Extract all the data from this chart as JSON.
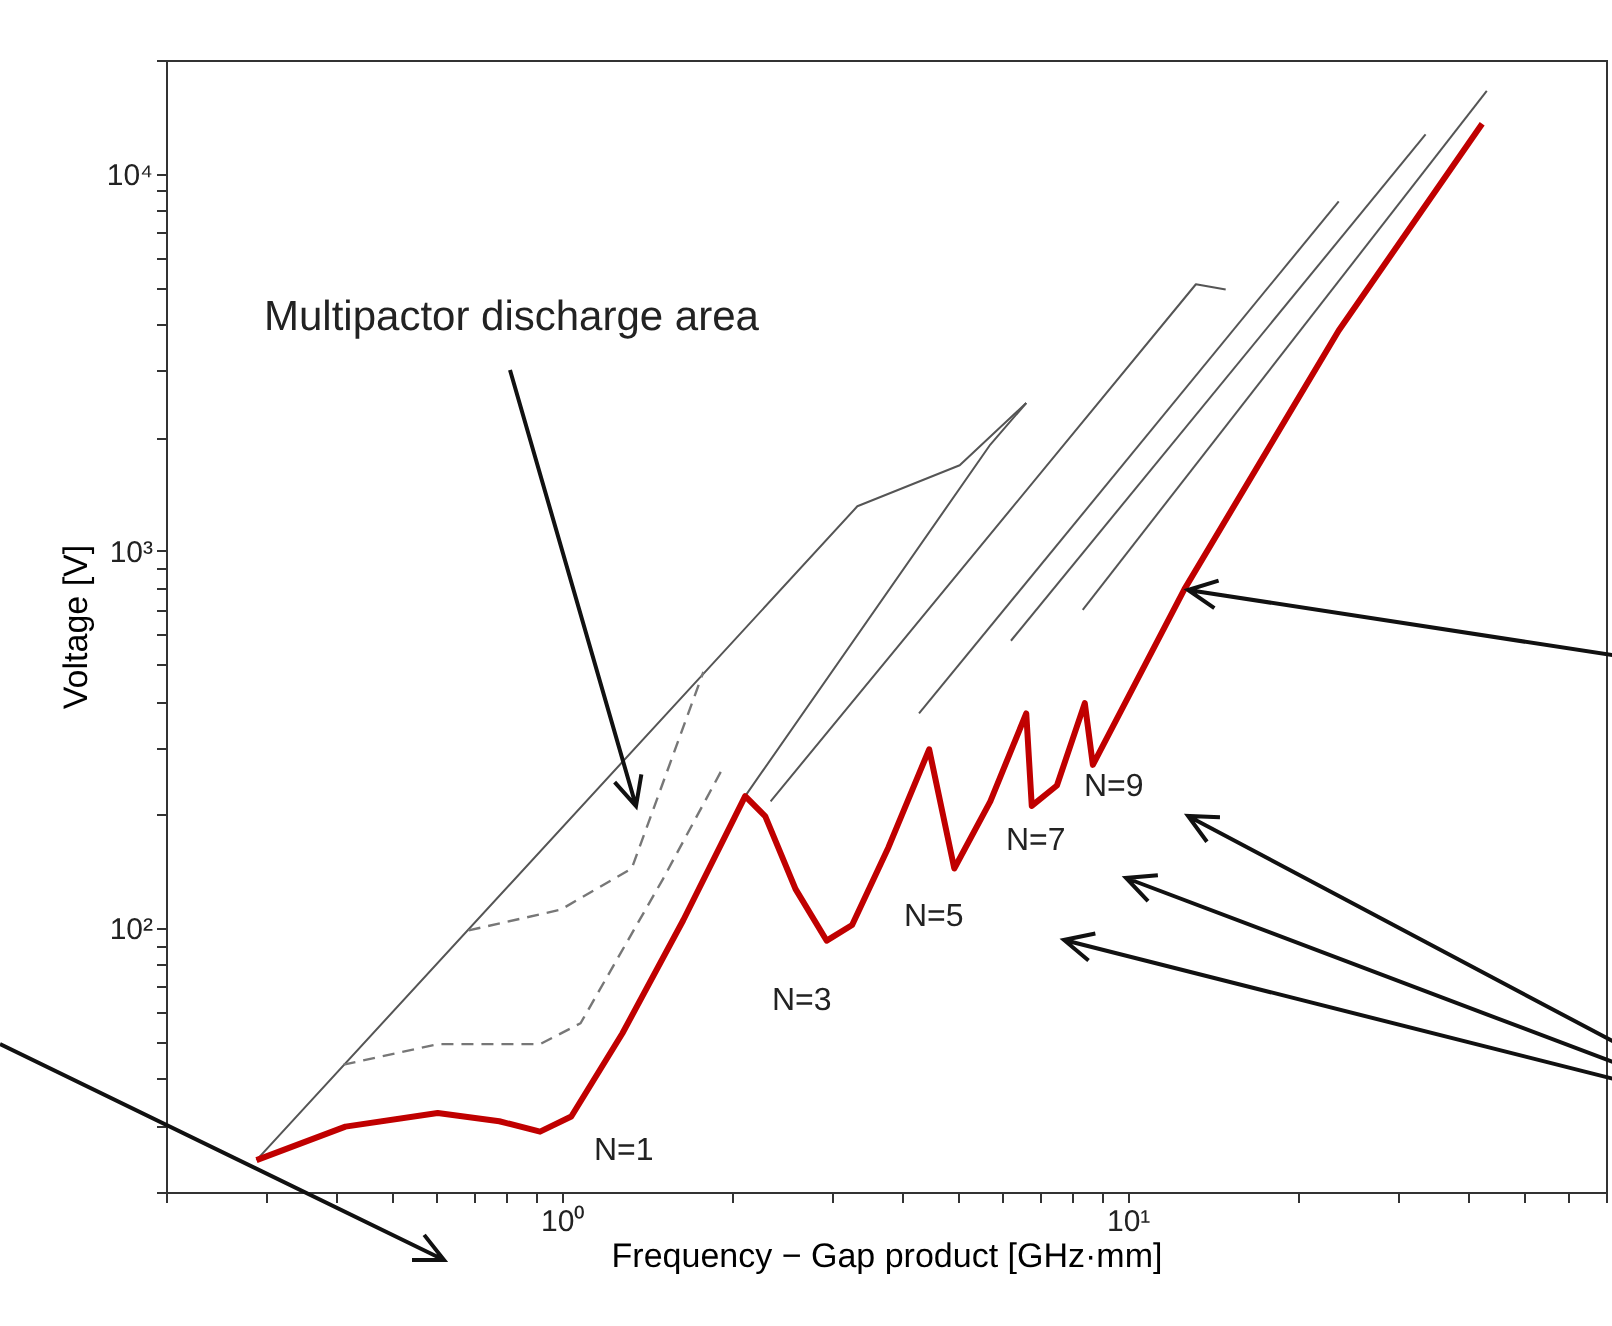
{
  "chart_data": {
    "type": "line",
    "xlabel": "Frequency − Gap product [GHz·mm]",
    "ylabel": "Voltage [V]",
    "log": "xy",
    "xlim": [
      0.2,
      70
    ],
    "ylim": [
      20,
      20000
    ],
    "xticks": [
      {
        "value": 0.2,
        "label": null
      },
      {
        "value": 0.3,
        "label": null
      },
      {
        "value": 0.4,
        "label": null
      },
      {
        "value": 0.5,
        "label": null
      },
      {
        "value": 0.6,
        "label": null
      },
      {
        "value": 0.7,
        "label": null
      },
      {
        "value": 0.8,
        "label": null
      },
      {
        "value": 0.9,
        "label": null
      },
      {
        "value": 1,
        "label": "10⁰"
      },
      {
        "value": 2,
        "label": null
      },
      {
        "value": 3,
        "label": null
      },
      {
        "value": 4,
        "label": null
      },
      {
        "value": 5,
        "label": null
      },
      {
        "value": 6,
        "label": null
      },
      {
        "value": 7,
        "label": null
      },
      {
        "value": 8,
        "label": null
      },
      {
        "value": 9,
        "label": null
      },
      {
        "value": 10,
        "label": "10¹"
      },
      {
        "value": 20,
        "label": null
      },
      {
        "value": 30,
        "label": null
      },
      {
        "value": 40,
        "label": null
      },
      {
        "value": 50,
        "label": null
      },
      {
        "value": 60,
        "label": null
      },
      {
        "value": 70,
        "label": null
      }
    ],
    "yticks": [
      {
        "value": 20,
        "label": null
      },
      {
        "value": 30,
        "label": null
      },
      {
        "value": 40,
        "label": null
      },
      {
        "value": 50,
        "label": null
      },
      {
        "value": 60,
        "label": null
      },
      {
        "value": 70,
        "label": null
      },
      {
        "value": 80,
        "label": null
      },
      {
        "value": 90,
        "label": null
      },
      {
        "value": 100,
        "label": "10²"
      },
      {
        "value": 200,
        "label": null
      },
      {
        "value": 300,
        "label": null
      },
      {
        "value": 400,
        "label": null
      },
      {
        "value": 500,
        "label": null
      },
      {
        "value": 600,
        "label": null
      },
      {
        "value": 700,
        "label": null
      },
      {
        "value": 800,
        "label": null
      },
      {
        "value": 900,
        "label": null
      },
      {
        "value": 1000,
        "label": "10³"
      },
      {
        "value": 2000,
        "label": null
      },
      {
        "value": 3000,
        "label": null
      },
      {
        "value": 4000,
        "label": null
      },
      {
        "value": 5000,
        "label": null
      },
      {
        "value": 6000,
        "label": null
      },
      {
        "value": 7000,
        "label": null
      },
      {
        "value": 8000,
        "label": null
      },
      {
        "value": 9000,
        "label": null
      },
      {
        "value": 10000,
        "label": "10⁴"
      },
      {
        "value": 20000,
        "label": null
      }
    ],
    "series": [
      {
        "color": "#555555",
        "x": [
          0.289,
          3.33,
          5.05,
          6.62
        ],
        "values": [
          24.3,
          1313,
          1687,
          2466
        ]
      },
      {
        "color": "#555555",
        "x": [
          2.11,
          5.72,
          6.62
        ],
        "values": [
          224,
          1914,
          2466
        ]
      },
      {
        "color": "#777777",
        "line_style": "dashed",
        "x": [
          0.412,
          0.604,
          0.916,
          1.08,
          1.51,
          1.94
        ],
        "values": [
          43.5,
          49.3,
          49.3,
          56,
          135,
          271
        ]
      },
      {
        "color": "#777777",
        "line_style": "dashed",
        "x": [
          0.685,
          0.996,
          1.33,
          1.78
        ],
        "values": [
          98.7,
          112,
          144,
          478
        ]
      },
      {
        "color": "#555555",
        "x": [
          2.34,
          13.2,
          14.9
        ],
        "values": [
          217,
          5090,
          4930
        ]
      },
      {
        "color": "#555555",
        "x": [
          4.28,
          23.6
        ],
        "values": [
          371,
          8440
        ]
      },
      {
        "color": "#555555",
        "x": [
          6.22,
          33.6
        ],
        "values": [
          578,
          12700
        ]
      },
      {
        "color": "#555555",
        "x": [
          8.33,
          43.1
        ],
        "values": [
          698,
          16560
        ]
      },
      {
        "color": "#c00000",
        "x": [
          0.289,
          0.415,
          0.604,
          0.776,
          0.916,
          1.04,
          1.28,
          1.64,
          2.11,
          2.29,
          2.59,
          2.94,
          3.26,
          3.78,
          4.46,
          4.94,
          5.72,
          6.62,
          6.77,
          7.5,
          8.4,
          8.68,
          12.6,
          23.6,
          42.3
        ],
        "values": [
          24.3,
          29.8,
          32.4,
          30.8,
          28.9,
          31.7,
          52.6,
          105,
          224,
          198,
          127,
          92.7,
          102,
          164,
          298,
          144,
          217,
          371,
          211,
          239,
          395,
          271,
          792,
          3840,
          13550
        ]
      }
    ],
    "annotations": [
      "Multipactor discharge area",
      "N=1",
      "N=3",
      "N=5",
      "N=7",
      "N=9"
    ]
  }
}
